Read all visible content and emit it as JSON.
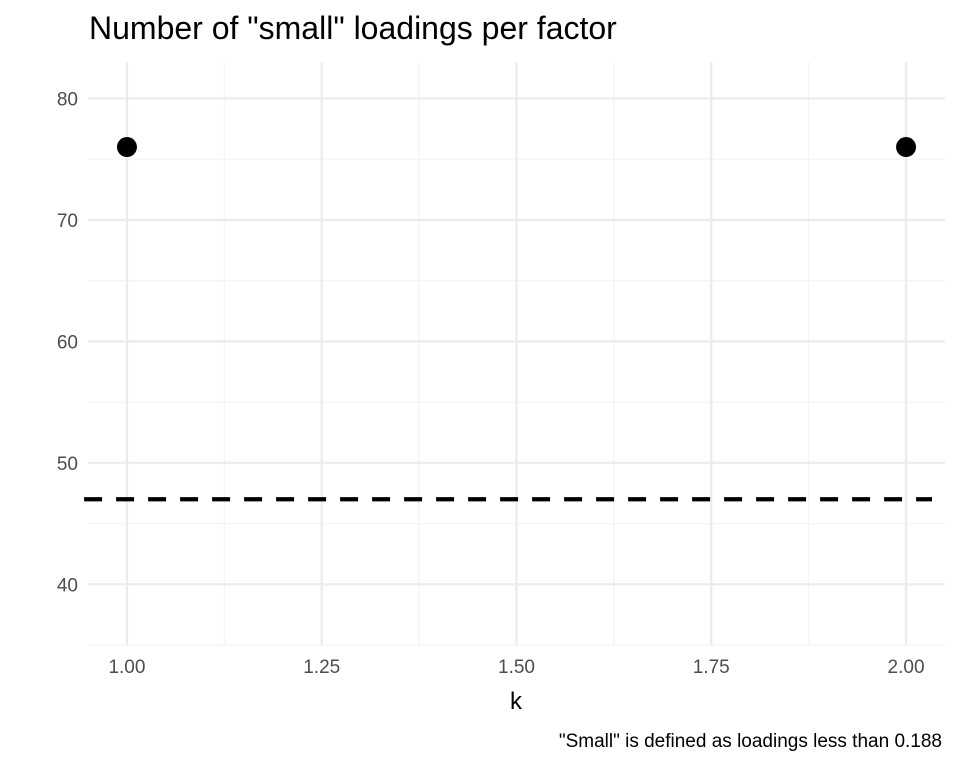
{
  "chart_data": {
    "type": "scatter",
    "title": "Number of \"small\" loadings per factor",
    "xlabel": "k",
    "ylabel": "",
    "caption": "\"Small\" is defined as loadings less than 0.188",
    "xlim": [
      0.95,
      2.05
    ],
    "ylim": [
      35,
      83
    ],
    "x_ticks": [
      1.0,
      1.25,
      1.5,
      1.75,
      2.0
    ],
    "x_tick_labels": [
      "1.00",
      "1.25",
      "1.50",
      "1.75",
      "2.00"
    ],
    "x_minor_ticks": [
      1.125,
      1.375,
      1.625,
      1.875
    ],
    "y_ticks": [
      40,
      50,
      60,
      70,
      80
    ],
    "y_tick_labels": [
      "40",
      "50",
      "60",
      "70",
      "80"
    ],
    "y_minor_ticks": [
      35,
      45,
      55,
      65,
      75
    ],
    "grid": true,
    "legend": "none",
    "points": [
      {
        "x": 1,
        "y": 76
      },
      {
        "x": 2,
        "y": 76
      }
    ],
    "reference_line": {
      "orientation": "horizontal",
      "y": 47,
      "style": "dashed"
    },
    "colors": {
      "points": "#000000",
      "reference_line": "#000000",
      "grid_major": "#ebebeb",
      "grid_minor": "#f3f3f3",
      "tick_text": "#4d4d4d",
      "background": "#ffffff"
    }
  }
}
